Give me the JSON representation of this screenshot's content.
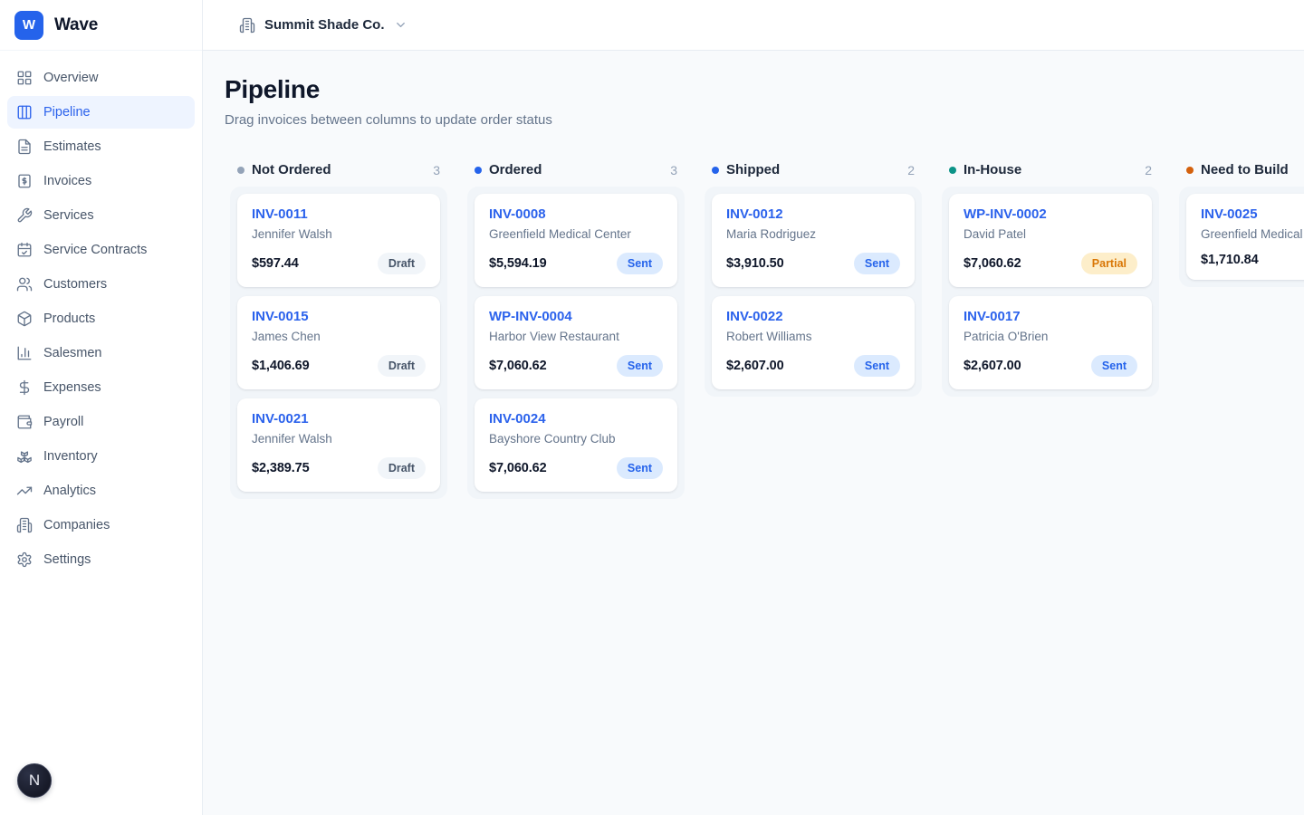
{
  "brand": {
    "logo_letter": "W",
    "name": "Wave"
  },
  "topbar": {
    "company": "Summit Shade Co."
  },
  "page": {
    "title": "Pipeline",
    "subtitle": "Drag invoices between columns to update order status"
  },
  "sidebar": {
    "items": [
      {
        "label": "Overview",
        "icon": "grid-icon",
        "active": false
      },
      {
        "label": "Pipeline",
        "icon": "columns-icon",
        "active": true
      },
      {
        "label": "Estimates",
        "icon": "file-text-icon",
        "active": false
      },
      {
        "label": "Invoices",
        "icon": "invoice-icon",
        "active": false
      },
      {
        "label": "Services",
        "icon": "wrench-icon",
        "active": false
      },
      {
        "label": "Service Contracts",
        "icon": "calendar-check-icon",
        "active": false
      },
      {
        "label": "Customers",
        "icon": "users-icon",
        "active": false
      },
      {
        "label": "Products",
        "icon": "package-icon",
        "active": false
      },
      {
        "label": "Salesmen",
        "icon": "bar-chart-icon",
        "active": false
      },
      {
        "label": "Expenses",
        "icon": "dollar-icon",
        "active": false
      },
      {
        "label": "Payroll",
        "icon": "wallet-icon",
        "active": false
      },
      {
        "label": "Inventory",
        "icon": "boxes-icon",
        "active": false
      },
      {
        "label": "Analytics",
        "icon": "trending-up-icon",
        "active": false
      },
      {
        "label": "Companies",
        "icon": "building-icon",
        "active": false
      },
      {
        "label": "Settings",
        "icon": "gear-icon",
        "active": false
      }
    ]
  },
  "board": {
    "columns": [
      {
        "name": "Not Ordered",
        "count": "3",
        "dot_color": "#94a3b8",
        "cards": [
          {
            "invoice": "INV-0011",
            "customer": "Jennifer Walsh",
            "amount": "$597.44",
            "status": "Draft"
          },
          {
            "invoice": "INV-0015",
            "customer": "James Chen",
            "amount": "$1,406.69",
            "status": "Draft"
          },
          {
            "invoice": "INV-0021",
            "customer": "Jennifer Walsh",
            "amount": "$2,389.75",
            "status": "Draft"
          }
        ]
      },
      {
        "name": "Ordered",
        "count": "3",
        "dot_color": "#2563eb",
        "cards": [
          {
            "invoice": "INV-0008",
            "customer": "Greenfield Medical Center",
            "amount": "$5,594.19",
            "status": "Sent"
          },
          {
            "invoice": "WP-INV-0004",
            "customer": "Harbor View Restaurant",
            "amount": "$7,060.62",
            "status": "Sent"
          },
          {
            "invoice": "INV-0024",
            "customer": "Bayshore Country Club",
            "amount": "$7,060.62",
            "status": "Sent"
          }
        ]
      },
      {
        "name": "Shipped",
        "count": "2",
        "dot_color": "#2563eb",
        "cards": [
          {
            "invoice": "INV-0012",
            "customer": "Maria Rodriguez",
            "amount": "$3,910.50",
            "status": "Sent"
          },
          {
            "invoice": "INV-0022",
            "customer": "Robert Williams",
            "amount": "$2,607.00",
            "status": "Sent"
          }
        ]
      },
      {
        "name": "In-House",
        "count": "2",
        "dot_color": "#0d9488",
        "cards": [
          {
            "invoice": "WP-INV-0002",
            "customer": "David Patel",
            "amount": "$7,060.62",
            "status": "Partial"
          },
          {
            "invoice": "INV-0017",
            "customer": "Patricia O'Brien",
            "amount": "$2,607.00",
            "status": "Sent"
          }
        ]
      },
      {
        "name": "Need to Build",
        "count": "",
        "dot_color": "#d4610d",
        "cards": [
          {
            "invoice": "INV-0025",
            "customer": "Greenfield Medical Center",
            "amount": "$1,710.84",
            "status": null
          }
        ]
      }
    ]
  },
  "dev_badge": {
    "letter": "N"
  },
  "colors": {
    "accent": "#2563eb",
    "active_nav_bg": "#eef4ff",
    "page_bg": "#f8fafc",
    "column_bg": "#f1f5f9",
    "badge_draft_bg": "#f1f5f9",
    "badge_draft_text": "#475569",
    "badge_sent_bg": "#dbeafe",
    "badge_sent_text": "#2563eb",
    "badge_partial_bg": "#fdeeca",
    "badge_partial_text": "#d97706"
  }
}
